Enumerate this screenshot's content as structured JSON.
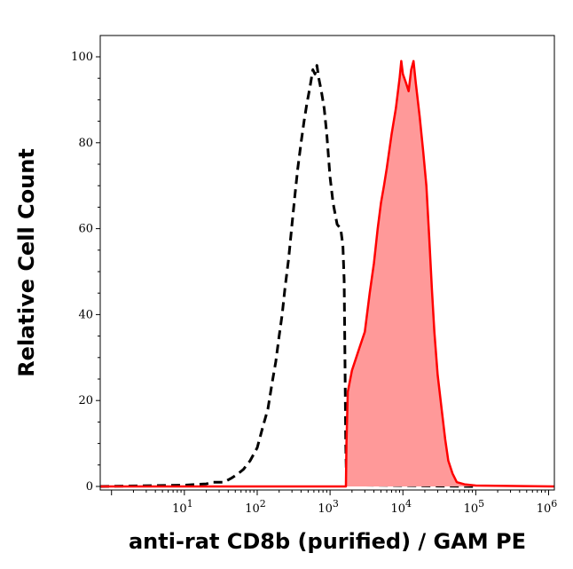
{
  "chart_data": {
    "type": "area",
    "xlabel": "anti-rat CD8b (purified) / GAM PE",
    "ylabel": "Relative Cell Count",
    "xscale": "log",
    "xlim": [
      0.7,
      1200000
    ],
    "ylim": [
      0,
      105
    ],
    "x_ticks": [
      {
        "base": "10",
        "exp": "1",
        "value": 10
      },
      {
        "base": "10",
        "exp": "2",
        "value": 100
      },
      {
        "base": "10",
        "exp": "3",
        "value": 1000
      },
      {
        "base": "10",
        "exp": "4",
        "value": 10000
      },
      {
        "base": "10",
        "exp": "5",
        "value": 100000
      },
      {
        "base": "10",
        "exp": "6",
        "value": 1000000
      }
    ],
    "y_ticks": [
      {
        "label": "0",
        "value": 0
      },
      {
        "label": "20",
        "value": 20
      },
      {
        "label": "40",
        "value": 40
      },
      {
        "label": "60",
        "value": 60
      },
      {
        "label": "80",
        "value": 80
      },
      {
        "label": "100",
        "value": 100
      }
    ],
    "grid": false,
    "legend": "none",
    "series": [
      {
        "style": "dashed",
        "color": "#000000",
        "fill": "none",
        "points": [
          [
            0.7,
            0
          ],
          [
            10,
            0.3
          ],
          [
            20,
            0.6
          ],
          [
            25,
            1
          ],
          [
            35,
            1
          ],
          [
            45,
            2
          ],
          [
            55,
            3
          ],
          [
            65,
            4
          ],
          [
            80,
            6
          ],
          [
            100,
            9
          ],
          [
            120,
            14
          ],
          [
            140,
            18
          ],
          [
            160,
            24
          ],
          [
            180,
            29
          ],
          [
            200,
            35
          ],
          [
            220,
            40
          ],
          [
            240,
            46
          ],
          [
            270,
            53
          ],
          [
            300,
            61
          ],
          [
            330,
            68
          ],
          [
            360,
            74
          ],
          [
            400,
            80
          ],
          [
            440,
            85
          ],
          [
            480,
            89
          ],
          [
            530,
            93
          ],
          [
            580,
            97
          ],
          [
            620,
            96
          ],
          [
            660,
            98
          ],
          [
            700,
            95
          ],
          [
            760,
            92
          ],
          [
            830,
            88
          ],
          [
            900,
            82
          ],
          [
            1000,
            72
          ],
          [
            1100,
            66
          ],
          [
            1250,
            61
          ],
          [
            1400,
            60
          ],
          [
            1500,
            56
          ],
          [
            1560,
            48
          ],
          [
            1600,
            30
          ],
          [
            1640,
            10
          ],
          [
            1680,
            2
          ],
          [
            1750,
            0.5
          ],
          [
            3000,
            0.3
          ],
          [
            10000,
            0.2
          ],
          [
            100000,
            0
          ]
        ]
      },
      {
        "style": "solid",
        "color": "#ff0000",
        "fill": "#ff9999",
        "points": [
          [
            0.7,
            0
          ],
          [
            1500,
            0
          ],
          [
            1650,
            0
          ],
          [
            1680,
            10
          ],
          [
            1750,
            22
          ],
          [
            2000,
            27
          ],
          [
            2500,
            32
          ],
          [
            3000,
            36
          ],
          [
            3500,
            45
          ],
          [
            4000,
            52
          ],
          [
            4500,
            60
          ],
          [
            5000,
            66
          ],
          [
            5500,
            70
          ],
          [
            6000,
            74
          ],
          [
            7000,
            82
          ],
          [
            8000,
            88
          ],
          [
            9000,
            95
          ],
          [
            9500,
            99
          ],
          [
            10000,
            96
          ],
          [
            11000,
            94
          ],
          [
            12000,
            92
          ],
          [
            13000,
            97
          ],
          [
            14000,
            99
          ],
          [
            15000,
            94
          ],
          [
            17000,
            86
          ],
          [
            19000,
            78
          ],
          [
            21000,
            70
          ],
          [
            23000,
            58
          ],
          [
            25000,
            46
          ],
          [
            27000,
            36
          ],
          [
            30000,
            26
          ],
          [
            34000,
            18
          ],
          [
            38000,
            11
          ],
          [
            42000,
            6
          ],
          [
            48000,
            3
          ],
          [
            55000,
            1
          ],
          [
            70000,
            0.5
          ],
          [
            100000,
            0.2
          ],
          [
            1200000,
            0
          ]
        ]
      }
    ]
  }
}
